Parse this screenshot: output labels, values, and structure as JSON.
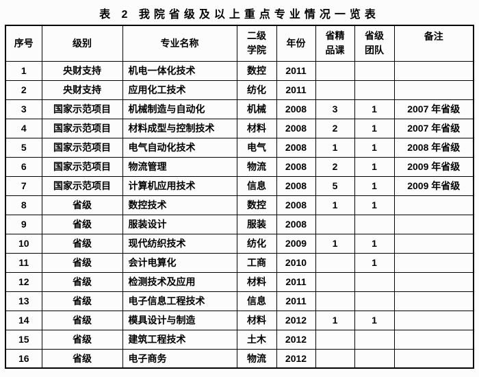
{
  "title": "表 2 我院省级及以上重点专业情况一览表",
  "colors": {
    "background": "#fcfcfc",
    "border": "#000000",
    "text": "#000000"
  },
  "table": {
    "headers": [
      "序号",
      "级别",
      "专业名称",
      "二级\n学院",
      "年份",
      "省精\n品课",
      "省级\n团队",
      "备注"
    ],
    "rows": [
      [
        "1",
        "央财支持",
        "机电一体化技术",
        "数控",
        "2011",
        "",
        "",
        ""
      ],
      [
        "2",
        "央财支持",
        "应用化工技术",
        "纺化",
        "2011",
        "",
        "",
        ""
      ],
      [
        "3",
        "国家示范项目",
        "机械制造与自动化",
        "机械",
        "2008",
        "3",
        "1",
        "2007 年省级"
      ],
      [
        "4",
        "国家示范项目",
        "材料成型与控制技术",
        "材料",
        "2008",
        "2",
        "1",
        "2007 年省级"
      ],
      [
        "5",
        "国家示范项目",
        "电气自动化技术",
        "电气",
        "2008",
        "1",
        "1",
        "2008 年省级"
      ],
      [
        "6",
        "国家示范项目",
        "物流管理",
        "物流",
        "2008",
        "2",
        "1",
        "2009 年省级"
      ],
      [
        "7",
        "国家示范项目",
        "计算机应用技术",
        "信息",
        "2008",
        "5",
        "1",
        "2009 年省级"
      ],
      [
        "8",
        "省级",
        "数控技术",
        "数控",
        "2008",
        "1",
        "1",
        ""
      ],
      [
        "9",
        "省级",
        "服装设计",
        "服装",
        "2008",
        "",
        "",
        ""
      ],
      [
        "10",
        "省级",
        "现代纺织技术",
        "纺化",
        "2009",
        "1",
        "1",
        ""
      ],
      [
        "11",
        "省级",
        "会计电算化",
        "工商",
        "2010",
        "",
        "1",
        ""
      ],
      [
        "12",
        "省级",
        "检测技术及应用",
        "材料",
        "2011",
        "",
        "",
        ""
      ],
      [
        "13",
        "省级",
        "电子信息工程技术",
        "信息",
        "2011",
        "",
        "",
        ""
      ],
      [
        "14",
        "省级",
        "模具设计与制造",
        "材料",
        "2012",
        "1",
        "1",
        ""
      ],
      [
        "15",
        "省级",
        "建筑工程技术",
        "土木",
        "2012",
        "",
        "",
        ""
      ],
      [
        "16",
        "省级",
        "电子商务",
        "物流",
        "2012",
        "",
        "",
        ""
      ]
    ]
  }
}
